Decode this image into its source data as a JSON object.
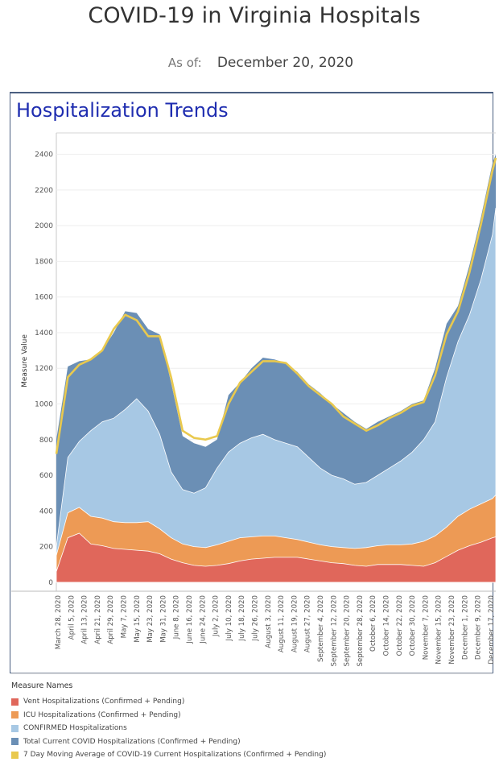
{
  "header": {
    "title": "COVID-19 in Virginia Hospitals",
    "as_of_label": "As of:",
    "as_of_value": "December 20, 2020"
  },
  "section": {
    "title": "Hospitalization Trends"
  },
  "chart_data": {
    "type": "area",
    "ylabel": "Measure Value",
    "xlabel": "",
    "ylim": [
      -50,
      2520
    ],
    "yticks": [
      0,
      200,
      400,
      600,
      800,
      1000,
      1200,
      1400,
      1600,
      1800,
      2000,
      2200,
      2400
    ],
    "grid": true,
    "x_start": "2020-03-27",
    "x_end": "2020-12-20",
    "xtick_labels": [
      "March 28, 2020",
      "April 5, 2020",
      "April 13, 2020",
      "April 21, 2020",
      "April 29, 2020",
      "May 7, 2020",
      "May 15, 2020",
      "May 23, 2020",
      "May 31, 2020",
      "June 8, 2020",
      "June 16, 2020",
      "June 24, 2020",
      "July 2, 2020",
      "July 10, 2020",
      "July 18, 2020",
      "July 26, 2020",
      "August 3, 2020",
      "August 11, 2020",
      "August 19, 2020",
      "August 27, 2020",
      "September 4, 2020",
      "September 12, 2020",
      "September 20, 2020",
      "September 28, 2020",
      "October 6, 2020",
      "October 14, 2020",
      "October 22, 2020",
      "October 30, 2020",
      "November 7, 2020",
      "November 15, 2020",
      "November 23, 2020",
      "December 1, 2020",
      "December 9, 2020",
      "December 17, 2020"
    ],
    "x": [
      "2020-03-27",
      "2020-04-03",
      "2020-04-10",
      "2020-04-17",
      "2020-04-24",
      "2020-05-01",
      "2020-05-08",
      "2020-05-15",
      "2020-05-22",
      "2020-05-29",
      "2020-06-05",
      "2020-06-12",
      "2020-06-19",
      "2020-06-26",
      "2020-07-03",
      "2020-07-10",
      "2020-07-17",
      "2020-07-24",
      "2020-07-31",
      "2020-08-07",
      "2020-08-14",
      "2020-08-21",
      "2020-08-28",
      "2020-09-04",
      "2020-09-11",
      "2020-09-18",
      "2020-09-25",
      "2020-10-02",
      "2020-10-09",
      "2020-10-16",
      "2020-10-23",
      "2020-10-30",
      "2020-11-06",
      "2020-11-13",
      "2020-11-20",
      "2020-11-27",
      "2020-12-04",
      "2020-12-11",
      "2020-12-18",
      "2020-12-20"
    ],
    "series": [
      {
        "name": "Vent Hospitalizations (Confirmed + Pending)",
        "color": "#e0675b",
        "values": [
          60,
          250,
          275,
          215,
          205,
          190,
          185,
          180,
          175,
          160,
          130,
          110,
          95,
          90,
          95,
          105,
          120,
          130,
          135,
          140,
          140,
          140,
          130,
          120,
          110,
          105,
          95,
          90,
          100,
          100,
          100,
          95,
          90,
          110,
          145,
          180,
          205,
          225,
          250,
          255
        ]
      },
      {
        "name": "ICU Hospitalizations (Confirmed + Pending)",
        "color": "#ed9a55",
        "values": [
          150,
          390,
          420,
          370,
          360,
          340,
          335,
          335,
          340,
          300,
          250,
          215,
          200,
          195,
          210,
          230,
          250,
          255,
          260,
          260,
          250,
          240,
          225,
          210,
          200,
          195,
          190,
          195,
          205,
          210,
          210,
          215,
          230,
          260,
          310,
          370,
          410,
          440,
          470,
          490
        ]
      },
      {
        "name": "CONFIRMED Hospitalizations",
        "color": "#a7c8e4",
        "values": [
          200,
          700,
          790,
          850,
          900,
          920,
          970,
          1030,
          960,
          830,
          620,
          520,
          500,
          530,
          640,
          730,
          780,
          810,
          830,
          800,
          780,
          760,
          700,
          640,
          600,
          580,
          550,
          560,
          600,
          640,
          680,
          730,
          800,
          900,
          1150,
          1350,
          1500,
          1700,
          1950,
          2100
        ]
      },
      {
        "name": "Total Current COVID Hospitalizations (Confirmed + Pending)",
        "color": "#6b8fb5",
        "values": [
          800,
          1210,
          1240,
          1250,
          1300,
          1400,
          1520,
          1510,
          1420,
          1390,
          1120,
          820,
          780,
          760,
          800,
          1050,
          1120,
          1200,
          1260,
          1250,
          1230,
          1180,
          1110,
          1060,
          1000,
          950,
          900,
          860,
          900,
          930,
          960,
          1000,
          1020,
          1200,
          1450,
          1550,
          1780,
          2050,
          2350,
          2400
        ]
      },
      {
        "name": "7 Day Moving Average of COVID-19 Current Hospitalizations (Confirmed + Pending)",
        "color": "#e9c94e",
        "values": [
          720,
          1150,
          1220,
          1250,
          1300,
          1420,
          1500,
          1470,
          1380,
          1380,
          1150,
          850,
          810,
          800,
          820,
          1000,
          1120,
          1180,
          1240,
          1240,
          1230,
          1170,
          1100,
          1050,
          1000,
          930,
          890,
          850,
          880,
          920,
          950,
          990,
          1010,
          1160,
          1390,
          1520,
          1740,
          2010,
          2310,
          2380
        ]
      }
    ],
    "legend_title": "Measure Names",
    "legend_position": "bottom-left"
  }
}
